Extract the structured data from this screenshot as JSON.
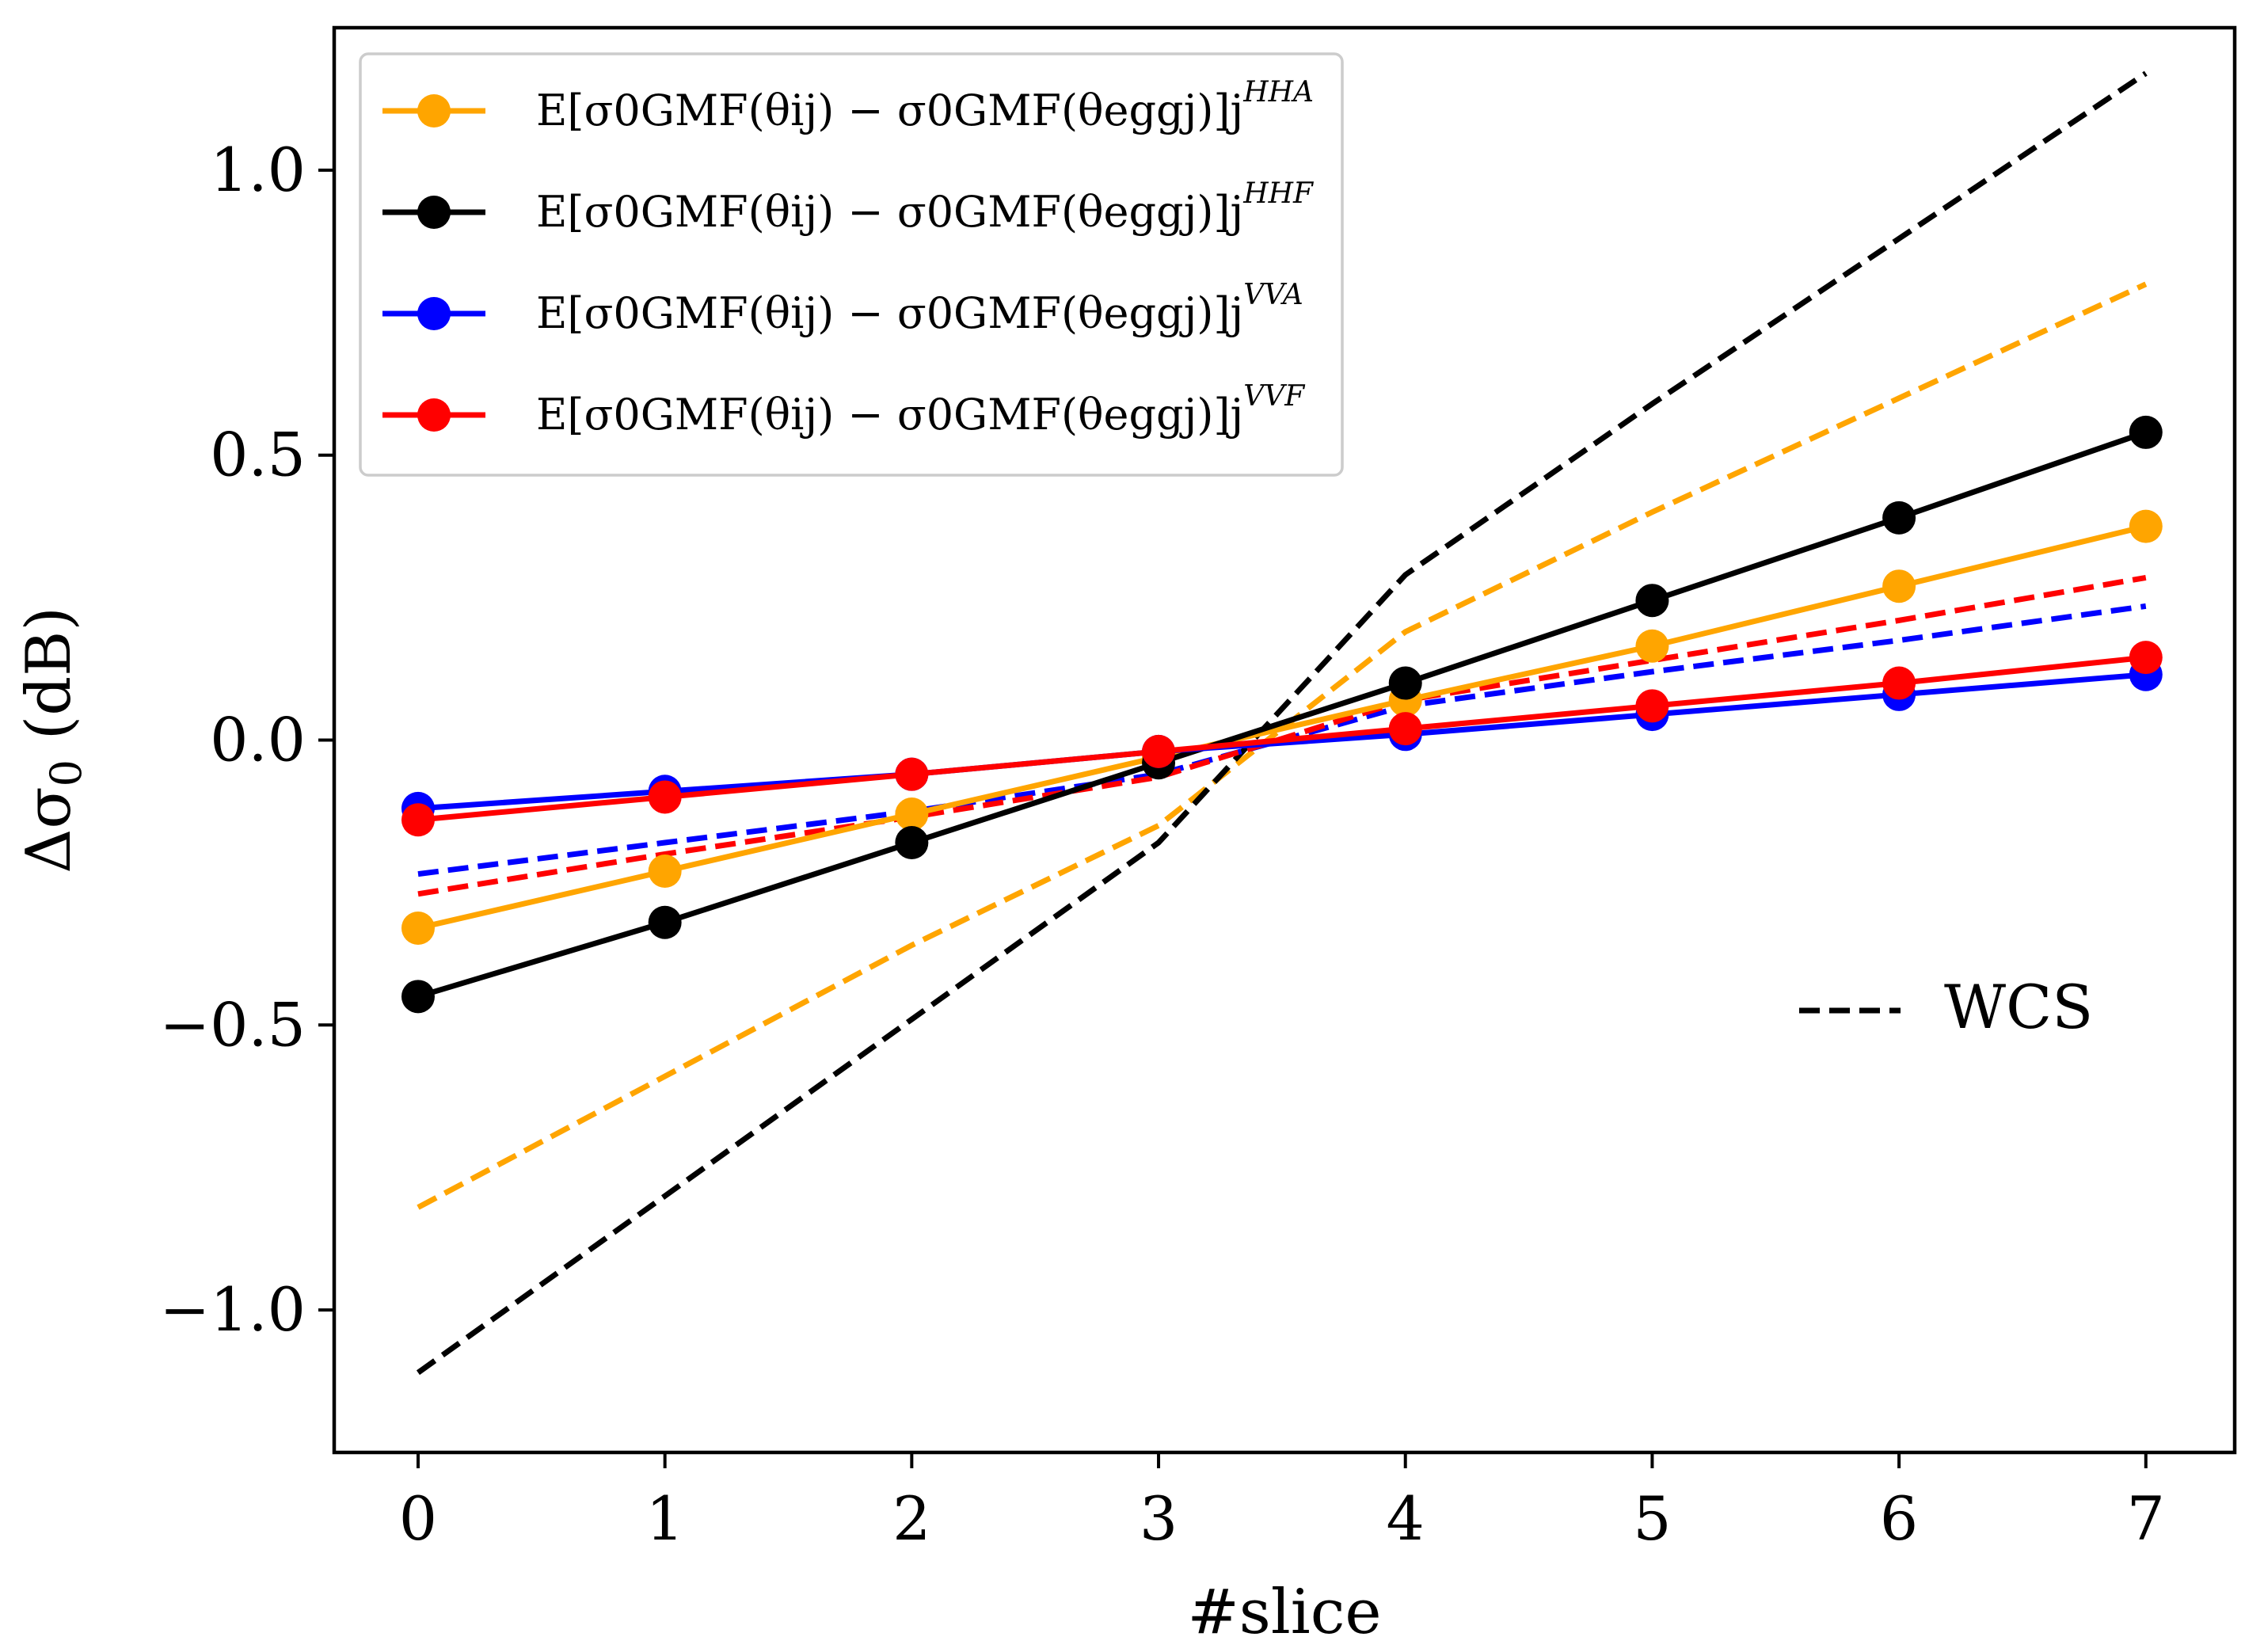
{
  "chart_data": {
    "type": "line",
    "xlabel": "#slice",
    "ylabel": "Δσ0 (dB)",
    "ylabel_main": "Δσ",
    "ylabel_sub": "0",
    "ylabel_unit": "(dB)",
    "x": [
      0,
      1,
      2,
      3,
      4,
      5,
      6,
      7
    ],
    "xlim": [
      -0.34,
      7.36
    ],
    "ylim": [
      -1.25,
      1.25
    ],
    "x_ticks": [
      0,
      1,
      2,
      3,
      4,
      5,
      6,
      7
    ],
    "y_ticks": [
      -1.0,
      -0.5,
      0.0,
      0.5,
      1.0
    ],
    "y_tick_labels": [
      "−1.0",
      "−0.5",
      "0.0",
      "0.5",
      "1.0"
    ],
    "grid": false,
    "legend_position": "top-left",
    "series": [
      {
        "name": "HHA",
        "label_main": "E[σ0GMF(θij) − σ0GMF(θeggj)]j",
        "label_sup": "HHA",
        "color": "#ffa500",
        "values": [
          -0.33,
          -0.23,
          -0.13,
          -0.03,
          0.07,
          0.165,
          0.27,
          0.375
        ],
        "wcs": [
          -0.82,
          -0.59,
          -0.36,
          -0.15,
          0.19,
          0.4,
          0.6,
          0.8
        ]
      },
      {
        "name": "HHF",
        "label_main": "E[σ0GMF(θij) − σ0GMF(θeggj)]j",
        "label_sup": "HHF",
        "color": "#000000",
        "values": [
          -0.45,
          -0.32,
          -0.18,
          -0.04,
          0.1,
          0.245,
          0.39,
          0.54
        ],
        "wcs": [
          -1.11,
          -0.8,
          -0.49,
          -0.18,
          0.29,
          0.59,
          0.88,
          1.17
        ]
      },
      {
        "name": "VVA",
        "label_main": "E[σ0GMF(θij) − σ0GMF(θeggj)]j",
        "label_sup": "VVA",
        "color": "#0000ff",
        "values": [
          -0.12,
          -0.09,
          -0.06,
          -0.02,
          0.01,
          0.045,
          0.08,
          0.115
        ],
        "wcs": [
          -0.235,
          -0.18,
          -0.125,
          -0.06,
          0.06,
          0.12,
          0.175,
          0.235
        ]
      },
      {
        "name": "VVF",
        "label_main": "E[σ0GMF(θij) − σ0GMF(θeggj)]j",
        "label_sup": "VVF",
        "color": "#ff0000",
        "values": [
          -0.14,
          -0.1,
          -0.06,
          -0.02,
          0.02,
          0.06,
          0.1,
          0.145
        ],
        "wcs": [
          -0.27,
          -0.2,
          -0.135,
          -0.065,
          0.07,
          0.14,
          0.21,
          0.285
        ]
      }
    ],
    "wcs_legend_label": "WCS"
  }
}
